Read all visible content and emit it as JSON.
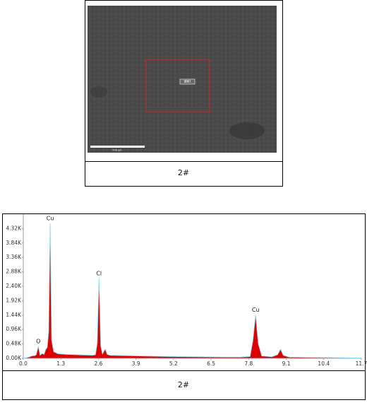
{
  "figure": {
    "scale_label": "500 µm",
    "spectrum_label": "谱图1",
    "caption": "2#"
  },
  "chart_data": {
    "type": "area",
    "color": "#e00000",
    "line_color": "#7fd8e8",
    "caption": "2#",
    "x": [
      0.0,
      0.1,
      0.2,
      0.3,
      0.4,
      0.45,
      0.52,
      0.58,
      0.65,
      0.72,
      0.78,
      0.83,
      0.88,
      0.93,
      0.98,
      1.05,
      1.2,
      1.5,
      1.8,
      2.1,
      2.4,
      2.5,
      2.56,
      2.62,
      2.68,
      2.74,
      2.8,
      2.84,
      2.9,
      3.0,
      3.5,
      4.0,
      5.0,
      6.0,
      7.0,
      7.5,
      7.85,
      7.95,
      8.04,
      8.13,
      8.25,
      8.6,
      8.8,
      8.9,
      9.0,
      9.2,
      10.0,
      11.0,
      11.7
    ],
    "values": [
      0,
      20,
      40,
      80,
      90,
      120,
      400,
      100,
      160,
      130,
      300,
      360,
      900,
      4490,
      600,
      220,
      150,
      130,
      120,
      110,
      100,
      120,
      500,
      2660,
      400,
      140,
      250,
      300,
      130,
      100,
      90,
      80,
      60,
      50,
      40,
      40,
      60,
      600,
      1450,
      500,
      80,
      50,
      120,
      300,
      100,
      40,
      30,
      20,
      10
    ],
    "xlim": [
      0,
      11.7
    ],
    "ylim": [
      0,
      4800
    ],
    "xticks": [
      {
        "value": 0,
        "label": "0.0"
      },
      1.3,
      2.6,
      3.9,
      5.2,
      6.5,
      7.8,
      9.1,
      10.4,
      11.7
    ],
    "yticks": [
      {
        "value": 0,
        "label": "0.00K"
      },
      {
        "value": 480,
        "label": "0.48K"
      },
      {
        "value": 960,
        "label": "0.96K"
      },
      {
        "value": 1440,
        "label": "1.44K"
      },
      {
        "value": 1920,
        "label": "1.92K"
      },
      {
        "value": 2400,
        "label": "2.40K"
      },
      {
        "value": 2880,
        "label": "2.88K"
      },
      {
        "value": 3360,
        "label": "3.36K"
      },
      {
        "value": 3840,
        "label": "3.84K"
      },
      {
        "value": 4320,
        "label": "4.32K"
      }
    ],
    "annotations": [
      {
        "text": "O",
        "x": 0.52
      },
      {
        "text": "Cu",
        "x": 0.93
      },
      {
        "text": "Cl",
        "x": 2.62
      },
      {
        "text": "Cu",
        "x": 8.04
      }
    ]
  }
}
